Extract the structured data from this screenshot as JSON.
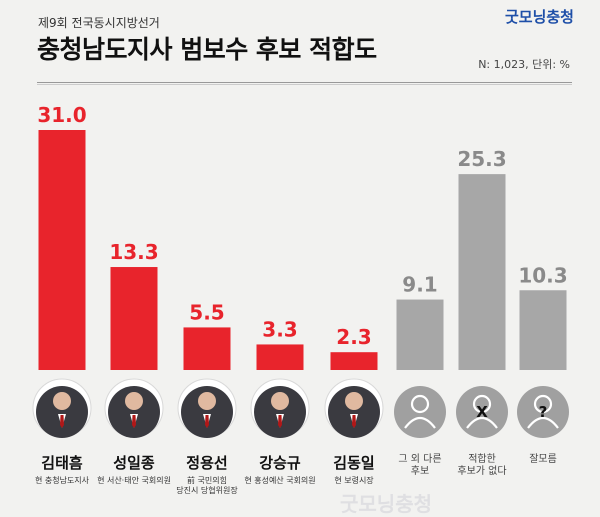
{
  "header": {
    "eyebrow": "제9회 전국동시지방선거",
    "title": "충청남도지사 범보수 후보 적합도",
    "brand": "굿모닝충청",
    "meta": "N: 1,023, 단위: %"
  },
  "colors": {
    "candidate": "#e8242c",
    "other": "#a7a7a7",
    "label_candidate": "#e8242c",
    "label_other": "#8a8a8a"
  },
  "chart_data": {
    "type": "bar",
    "categories": [
      "김태흠",
      "성일종",
      "정용선",
      "강승규",
      "김동일",
      "그 외 다른 후보",
      "적합한 후보가 없다",
      "잘모름"
    ],
    "values": [
      31.0,
      13.3,
      5.5,
      3.3,
      2.3,
      9.1,
      25.3,
      10.3
    ],
    "value_labels": [
      "31.0",
      "13.3",
      "5.5",
      "3.3",
      "2.3",
      "9.1",
      "25.3",
      "10.3"
    ],
    "ylim": [
      0,
      31.0
    ],
    "candidates": [
      {
        "name": "김태흠",
        "sub": [
          "현 충청남도지사"
        ],
        "icon": "politician-photo"
      },
      {
        "name": "성일종",
        "sub": [
          "현 서산·태안 국회의원"
        ],
        "icon": "politician-photo"
      },
      {
        "name": "정용선",
        "sub": [
          "前 국민의힘",
          "당진시 당협위원장"
        ],
        "icon": "politician-photo"
      },
      {
        "name": "강승규",
        "sub": [
          "현 홍성예산 국회의원"
        ],
        "icon": "politician-photo"
      },
      {
        "name": "김동일",
        "sub": [
          "현 보령시장"
        ],
        "icon": "politician-photo"
      }
    ],
    "others": [
      {
        "label": [
          "그 외 다른",
          "후보"
        ],
        "icon": "person-icon"
      },
      {
        "label": [
          "적합한",
          "후보가 없다"
        ],
        "icon": "x-person-icon"
      },
      {
        "label": [
          "잘모름"
        ],
        "icon": "question-person-icon"
      }
    ]
  },
  "watermark": "굿모닝충청"
}
